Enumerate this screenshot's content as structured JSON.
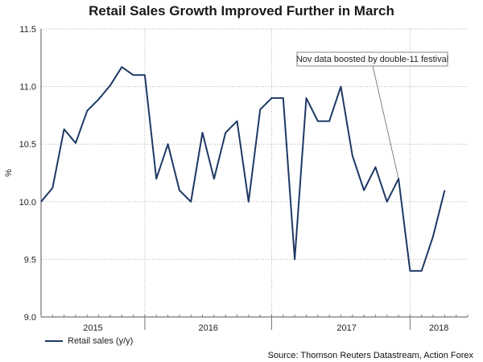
{
  "chart_data": {
    "type": "line",
    "title": "Retail Sales Growth Improved Further in March",
    "ylabel": "%",
    "ylim": [
      9.0,
      11.5
    ],
    "yticks": [
      "9.0",
      "9.5",
      "10.0",
      "10.5",
      "11.0",
      "11.5"
    ],
    "year_labels": [
      {
        "label": "2015",
        "index": 4.5
      },
      {
        "label": "2016",
        "index": 14.5
      },
      {
        "label": "2017",
        "index": 26.5
      },
      {
        "label": "2018",
        "index": 34.5
      }
    ],
    "year_gridlines": [
      9,
      20,
      32
    ],
    "month_count": 38,
    "series": [
      {
        "name": "Retail sales (y/y)",
        "color": "#1f3864",
        "values": [
          10.0,
          10.12,
          10.63,
          10.51,
          10.79,
          10.89,
          11.01,
          11.17,
          11.1,
          11.1,
          10.2,
          10.5,
          10.1,
          10.0,
          10.6,
          10.2,
          10.6,
          10.7,
          10.0,
          10.8,
          10.9,
          10.9,
          9.5,
          10.9,
          10.7,
          10.7,
          11.0,
          10.4,
          10.1,
          10.3,
          10.0,
          10.2,
          9.4,
          9.4,
          9.7,
          10.1
        ]
      }
    ],
    "annotation": {
      "text": "Nov data boosted by double-11 festival",
      "point_index": 31
    },
    "source": "Source: Thomson Reuters Datastream, Action Forex",
    "colors": {
      "line": "#1f3864",
      "grid": "#b0b0b0"
    }
  }
}
